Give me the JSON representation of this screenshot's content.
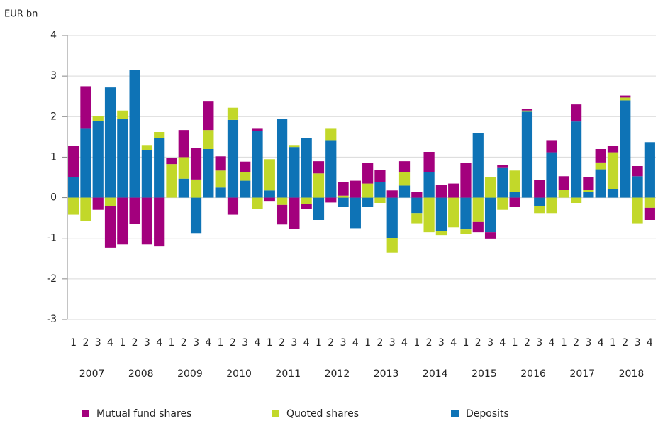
{
  "chart_data": {
    "type": "bar",
    "stacked": true,
    "y_label": "EUR bn",
    "categories": [
      "1",
      "2",
      "3",
      "4",
      "1",
      "2",
      "3",
      "4",
      "1",
      "2",
      "3",
      "4",
      "1",
      "2",
      "3",
      "4",
      "1",
      "2",
      "3",
      "4",
      "1",
      "2",
      "3",
      "4",
      "1",
      "2",
      "3",
      "4",
      "1",
      "2",
      "3",
      "4",
      "1",
      "2",
      "3",
      "4",
      "1",
      "2",
      "3",
      "4",
      "1",
      "2",
      "3",
      "4",
      "1",
      "2",
      "3",
      "4"
    ],
    "years": [
      "2007",
      "2008",
      "2009",
      "2010",
      "2011",
      "2012",
      "2013",
      "2014",
      "2015",
      "2016",
      "2017",
      "2018"
    ],
    "series": [
      {
        "name": "Mutual fund shares",
        "color": "#a3007d",
        "values": [
          0.77,
          1.05,
          -0.3,
          -1.03,
          -1.15,
          -0.65,
          -1.15,
          -1.2,
          0.15,
          0.67,
          0.78,
          0.7,
          0.35,
          -0.42,
          0.25,
          0.05,
          -0.08,
          -0.48,
          -0.77,
          -0.12,
          0.3,
          -0.12,
          0.33,
          0.42,
          0.5,
          0.3,
          0.18,
          0.27,
          0.15,
          0.5,
          0.32,
          0.35,
          0.85,
          -0.25,
          -0.17,
          0.05,
          -0.23,
          0.04,
          0.43,
          0.3,
          0.33,
          0.42,
          0.3,
          0.33,
          0.15,
          0.05,
          0.25,
          -0.3
        ]
      },
      {
        "name": "Quoted shares",
        "color": "#c2d82a",
        "values": [
          -0.42,
          -0.58,
          0.12,
          -0.2,
          0.2,
          0,
          0.13,
          0.15,
          0.83,
          0.53,
          0.45,
          0.47,
          0.42,
          0.3,
          0.22,
          -0.27,
          0.77,
          -0.18,
          0.05,
          -0.15,
          0.6,
          0.28,
          0.05,
          0,
          0.35,
          -0.13,
          -0.35,
          0.33,
          -0.25,
          -0.85,
          -0.1,
          -0.73,
          -0.12,
          -0.6,
          0.5,
          -0.3,
          0.52,
          0.03,
          -0.18,
          -0.38,
          0.2,
          -0.13,
          0.05,
          0.17,
          0.9,
          0.07,
          -0.63,
          -0.25
        ]
      },
      {
        "name": "Deposits",
        "color": "#0e73b6",
        "values": [
          0.5,
          1.7,
          1.9,
          2.72,
          1.95,
          3.15,
          1.17,
          1.47,
          0,
          0.47,
          -0.87,
          1.2,
          0.25,
          1.92,
          0.42,
          1.65,
          0.18,
          1.95,
          1.25,
          1.48,
          -0.55,
          1.42,
          -0.22,
          -0.75,
          -0.22,
          0.38,
          -1.0,
          0.3,
          -0.38,
          0.63,
          -0.82,
          0,
          -0.78,
          1.6,
          -0.85,
          0.75,
          0.15,
          2.12,
          -0.2,
          1.12,
          0,
          1.88,
          0.15,
          0.7,
          0.22,
          2.4,
          0.53,
          1.37
        ]
      }
    ],
    "ylim": [
      -3,
      4
    ],
    "yticks": [
      -3,
      -2,
      -1,
      0,
      1,
      2,
      3,
      4
    ],
    "grid": true
  }
}
